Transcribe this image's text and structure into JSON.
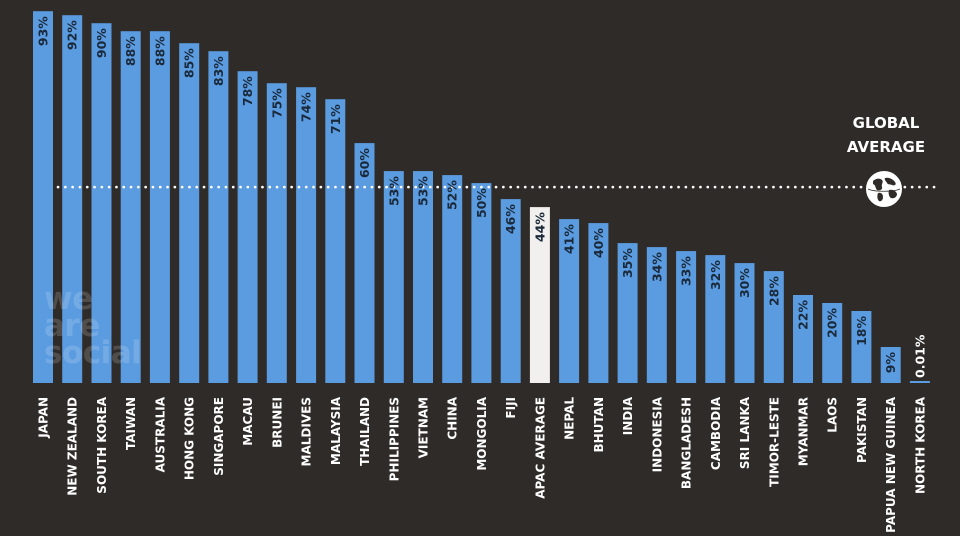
{
  "branding": {
    "watermark_lines": [
      "we",
      "are",
      "social"
    ]
  },
  "global_average": {
    "label_lines": [
      "GLOBAL",
      "AVERAGE"
    ],
    "value": 49,
    "icon": "globe-icon"
  },
  "colors": {
    "background": "#2f2b29",
    "bar": "#5b9be0",
    "highlight_bar": "#f2f0ee",
    "label_text": "#ffffff",
    "value_text": "#1b2a3a",
    "dotted_line": "#ffffff"
  },
  "chart_data": {
    "type": "bar",
    "orientation": "vertical",
    "categories": [
      "JAPAN",
      "NEW ZEALAND",
      "SOUTH KOREA",
      "TAIWAN",
      "AUSTRALIA",
      "HONG KONG",
      "SINGAPORE",
      "MACAU",
      "BRUNEI",
      "MALDIVES",
      "MALAYSIA",
      "THAILAND",
      "PHILIPPINES",
      "VIETNAM",
      "CHINA",
      "MONGOLIA",
      "FIJI",
      "APAC AVERAGE",
      "NEPAL",
      "BHUTAN",
      "INDIA",
      "INDONESIA",
      "BANGLADESH",
      "CAMBODIA",
      "SRI LANKA",
      "TIMOR-LESTE",
      "MYANMAR",
      "LAOS",
      "PAKISTAN",
      "PAPUA NEW GUINEA",
      "NORTH KOREA"
    ],
    "values": [
      93,
      92,
      90,
      88,
      88,
      85,
      83,
      78,
      75,
      74,
      71,
      60,
      53,
      53,
      52,
      50,
      46,
      44,
      41,
      40,
      35,
      34,
      33,
      32,
      30,
      28,
      22,
      20,
      18,
      9,
      0.01
    ],
    "value_labels": [
      "93%",
      "92%",
      "90%",
      "88%",
      "88%",
      "85%",
      "83%",
      "78%",
      "75%",
      "74%",
      "71%",
      "60%",
      "53%",
      "53%",
      "52%",
      "50%",
      "46%",
      "44%",
      "41%",
      "40%",
      "35%",
      "34%",
      "33%",
      "32%",
      "30%",
      "28%",
      "22%",
      "20%",
      "18%",
      "9%",
      "0.01%"
    ],
    "highlight_index": 17,
    "reference_line": {
      "value": 49,
      "style": "dotted"
    },
    "ylim": [
      0,
      100
    ],
    "title": "",
    "xlabel": "",
    "ylabel": "",
    "grid": false,
    "legend": "none"
  }
}
